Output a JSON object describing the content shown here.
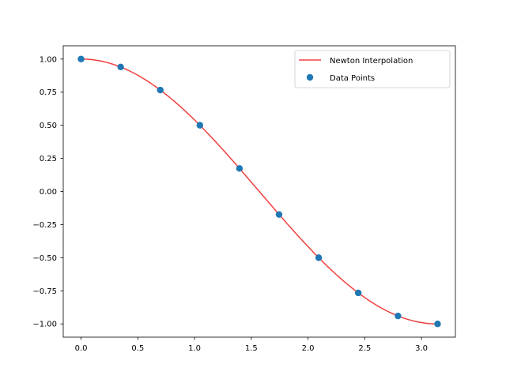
{
  "chart_data": {
    "type": "line",
    "title": "",
    "xlabel": "",
    "ylabel": "",
    "xlim": [
      -0.157,
      3.299
    ],
    "ylim": [
      -1.1,
      1.1
    ],
    "grid": false,
    "legend_placement": "top-right",
    "x_ticks": [
      0.0,
      0.5,
      1.0,
      1.5,
      2.0,
      2.5,
      3.0
    ],
    "x_tick_labels": [
      "0.0",
      "0.5",
      "1.0",
      "1.5",
      "2.0",
      "2.5",
      "3.0"
    ],
    "y_ticks": [
      1.0,
      0.75,
      0.5,
      0.25,
      0.0,
      -0.25,
      -0.5,
      -0.75,
      -1.0
    ],
    "y_tick_labels": [
      "1.00",
      "0.75",
      "0.50",
      "0.25",
      "0.00",
      "−0.25",
      "−0.50",
      "−0.75",
      "−1.00"
    ],
    "series": [
      {
        "name": "Newton Interpolation",
        "kind": "line",
        "color": "#f04040",
        "function": "cos",
        "x_range": [
          0.0,
          3.1416
        ]
      },
      {
        "name": "Data Points",
        "kind": "scatter",
        "color": "#1f77b4",
        "x": [
          0.0,
          0.349,
          0.698,
          1.047,
          1.396,
          1.745,
          2.094,
          2.443,
          2.793,
          3.142
        ],
        "y": [
          1.0,
          0.94,
          0.766,
          0.5,
          0.174,
          -0.174,
          -0.5,
          -0.766,
          -0.94,
          -1.0
        ]
      }
    ]
  }
}
